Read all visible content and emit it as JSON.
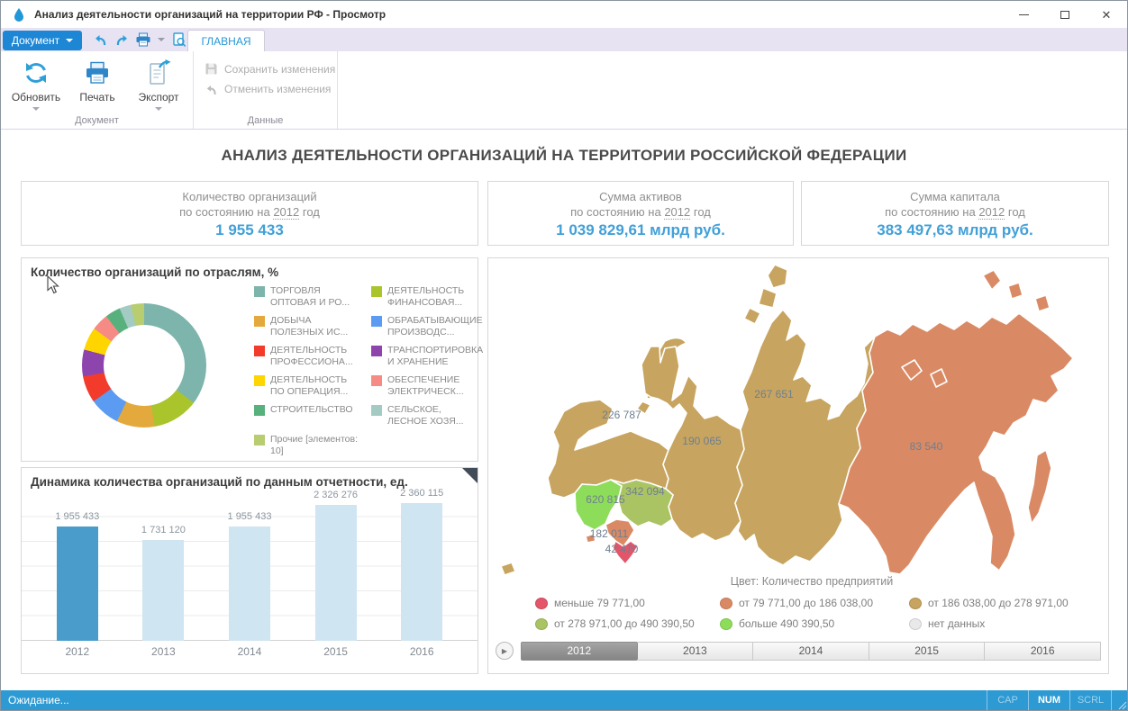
{
  "window": {
    "title": "Анализ деятельности организаций на территории РФ - Просмотр"
  },
  "qat": {
    "document_label": "Документ",
    "tab_home": "ГЛАВНАЯ"
  },
  "ribbon": {
    "refresh_label": "Обновить",
    "print_label": "Печать",
    "export_label": "Экспорт",
    "save_label": "Сохранить изменения",
    "discard_label": "Отменить изменения",
    "group_document": "Документ",
    "group_data": "Данные"
  },
  "page": {
    "title": "АНАЛИЗ ДЕЯТЕЛЬНОСТИ ОРГАНИЗАЦИЙ НА ТЕРРИТОРИИ РОССИЙСКОЙ ФЕДЕРАЦИИ"
  },
  "kpis": [
    {
      "title": "Количество организаций",
      "prefix": "по состоянию на",
      "year": "2012",
      "suffix": "год",
      "value": "1 955 433"
    },
    {
      "title": "Сумма активов",
      "prefix": "по состоянию на",
      "year": "2012",
      "suffix": "год",
      "value": "1 039 829,61 млрд руб."
    },
    {
      "title": "Сумма капитала",
      "prefix": "по состоянию на",
      "year": "2012",
      "suffix": "год",
      "value": "383 497,63 млрд руб."
    }
  ],
  "statusbar": {
    "text": "Ожидание...",
    "cap": "CAP",
    "num": "NUM",
    "scrl": "SCRL"
  },
  "chart_data": [
    {
      "type": "pie",
      "donut": true,
      "title": "Количество организаций по отраслям, %",
      "labels": [
        "ТОРГОВЛЯ ОПТОВАЯ И РО...",
        "ДЕЯТЕЛЬНОСТЬ ФИНАНСОВАЯ...",
        "ДОБЫЧА ПОЛЕЗНЫХ ИС...",
        "ОБРАБАТЫВАЮЩИЕ ПРОИЗВОДС...",
        "ДЕЯТЕЛЬНОСТЬ ПРОФЕССИОНА...",
        "ТРАНСПОРТИРОВКА И ХРАНЕНИЕ",
        "ДЕЯТЕЛЬНОСТЬ ПО ОПЕРАЦИЯ...",
        "ОБЕСПЕЧЕНИЕ ЭЛЕКТРИЧЕСК...",
        "СТРОИТЕЛЬСТВО",
        "СЕЛЬСКОЕ, ЛЕСНОЕ ХОЗЯ...",
        "Прочие [элементов: 10]"
      ],
      "values": [
        35.5,
        12,
        10,
        8,
        7,
        7,
        6,
        4.5,
        4,
        3,
        3.5
      ],
      "colors": [
        "#7db4ac",
        "#a9c52b",
        "#e3a93c",
        "#5b9bf2",
        "#f23b2a",
        "#8e44ad",
        "#ffd500",
        "#f58b84",
        "#58b17c",
        "#a3cbc4",
        "#b8cc70"
      ],
      "legend_position": "right"
    },
    {
      "type": "bar",
      "title": "Динамика количества организаций по данным отчетности, ед.",
      "categories": [
        "2012",
        "2013",
        "2014",
        "2015",
        "2016"
      ],
      "values": [
        1955433,
        1731120,
        1955433,
        2326276,
        2360115
      ],
      "value_labels": [
        "1 955 433",
        "1 731 120",
        "1 955 433",
        "2 326 276",
        "2 360 115"
      ],
      "bar_colors": [
        "#4a9dca",
        "#cfe5f1",
        "#cfe5f1",
        "#cfe5f1",
        "#cfe5f1"
      ],
      "ylim": [
        0,
        2550000
      ],
      "grid": true
    },
    {
      "type": "choropleth",
      "color_legend_title": "Цвет: Количество предприятий",
      "regions": [
        {
          "value_label": "226 787",
          "value": 226787,
          "color": "#c7a45f"
        },
        {
          "value_label": "620 815",
          "value": 620815,
          "color": "#8edd5a"
        },
        {
          "value_label": "342 094",
          "value": 342094,
          "color": "#aac464"
        },
        {
          "value_label": "182 011",
          "value": 182011,
          "color": "#d98a64"
        },
        {
          "value_label": "42 470",
          "value": 42470,
          "color": "#e4556a"
        },
        {
          "value_label": "190 065",
          "value": 190065,
          "color": "#c7a45f"
        },
        {
          "value_label": "267 651",
          "value": 267651,
          "color": "#c7a45f"
        },
        {
          "value_label": "83 540",
          "value": 83540,
          "color": "#d98a64"
        }
      ],
      "legend": [
        {
          "label": "меньше 79 771,00",
          "color": "#e4556a"
        },
        {
          "label": "от 79 771,00 до 186 038,00",
          "color": "#d98a64"
        },
        {
          "label": "от 186 038,00 до 278 971,00",
          "color": "#c7a45f"
        },
        {
          "label": "от 278 971,00 до 490 390,50",
          "color": "#aac464"
        },
        {
          "label": "больше 490 390,50",
          "color": "#8edd5a"
        },
        {
          "label": "нет данных",
          "color": "#e9e9e9"
        }
      ],
      "years": [
        "2012",
        "2013",
        "2014",
        "2015",
        "2016"
      ],
      "selected_year": "2012"
    }
  ]
}
